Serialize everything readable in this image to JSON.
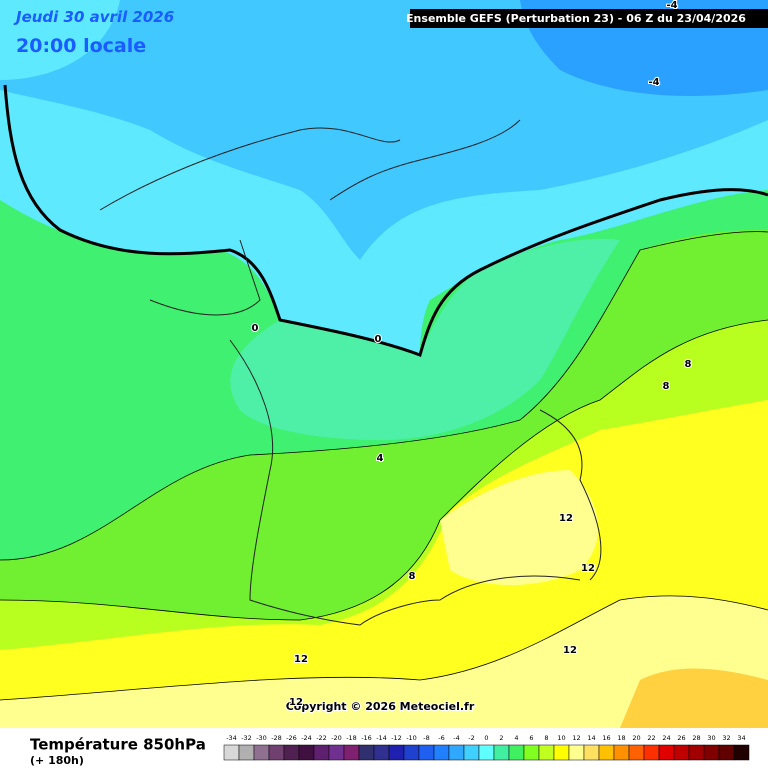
{
  "header": {
    "date": "Jeudi 30 avril 2026",
    "time": "20:00 locale",
    "run": "Ensemble GEFS  (Perturbation 23)  -  06 Z du 23/04/2026"
  },
  "copyright": "Copyright © 2026 Meteociel.fr",
  "footer": {
    "title": "Température 850hPa",
    "lead": "(+ 180h)"
  },
  "contour_labels": [
    -4,
    -4,
    0,
    0,
    4,
    8,
    8,
    8,
    12,
    12,
    12,
    12,
    12
  ],
  "legend": {
    "labels": [
      -34,
      -32,
      -30,
      -28,
      -26,
      -24,
      -22,
      -20,
      -18,
      -16,
      -14,
      -12,
      -10,
      -8,
      -6,
      -4,
      -2,
      0,
      2,
      4,
      6,
      8,
      10,
      12,
      14,
      16,
      18,
      20,
      22,
      24,
      26,
      28,
      30,
      32,
      34
    ],
    "colors": [
      "#d8d8d8",
      "#b0b0b0",
      "#907090",
      "#704070",
      "#502050",
      "#401040",
      "#602070",
      "#703090",
      "#802070",
      "#303070",
      "#303090",
      "#2020b0",
      "#2040d0",
      "#2060f0",
      "#2080ff",
      "#30a8ff",
      "#40d0ff",
      "#60ffff",
      "#40f0a0",
      "#40f060",
      "#80ff20",
      "#c0ff20",
      "#ffff00",
      "#ffff90",
      "#ffe060",
      "#ffc000",
      "#ff9000",
      "#ff6000",
      "#ff3000",
      "#e00000",
      "#c00000",
      "#a00000",
      "#800000",
      "#600000",
      "#200000"
    ]
  }
}
